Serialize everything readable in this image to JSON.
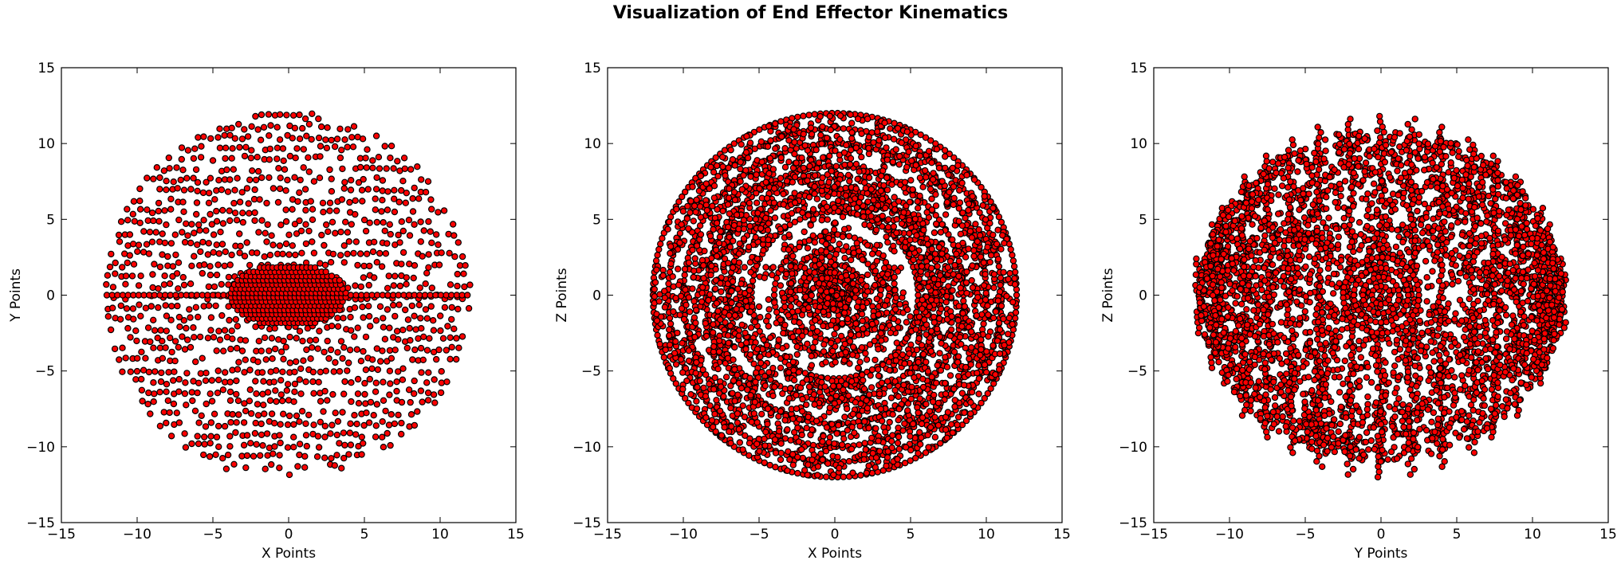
{
  "figure": {
    "title": "Visualization of End Effector Kinematics"
  },
  "colors": {
    "marker_fill": "#ff0000",
    "marker_edge": "#000000",
    "axes": "#000000",
    "background": "#ffffff"
  },
  "chart_data": [
    {
      "type": "scatter",
      "xlabel": "X Points",
      "ylabel": "Y Points",
      "xlim": [
        -15,
        15
      ],
      "ylim": [
        -15,
        15
      ],
      "xticks": [
        -15,
        -10,
        -5,
        0,
        5,
        10,
        15
      ],
      "yticks": [
        -15,
        -10,
        -5,
        0,
        5,
        10,
        15
      ],
      "grid": false,
      "marker": "circle",
      "pattern": "sphere-slices",
      "sphere_radius": 12,
      "slice_step": 0.7,
      "inner_ellipse": {
        "rx": 3.8,
        "ry": 2.1
      }
    },
    {
      "type": "scatter",
      "xlabel": "X Points",
      "ylabel": "Z Points",
      "xlim": [
        -15,
        15
      ],
      "ylim": [
        -15,
        15
      ],
      "xticks": [
        -15,
        -10,
        -5,
        0,
        5,
        10,
        15
      ],
      "yticks": [
        -15,
        -10,
        -5,
        0,
        5,
        10,
        15
      ],
      "grid": false,
      "marker": "circle",
      "pattern": "concentric-rings",
      "sphere_radius": 12,
      "rings": [
        1,
        2,
        3,
        4,
        5.5,
        7,
        8.5,
        10,
        11,
        12
      ]
    },
    {
      "type": "scatter",
      "xlabel": "Y Points",
      "ylabel": "Z Points",
      "xlim": [
        -15,
        15
      ],
      "ylim": [
        -15,
        15
      ],
      "xticks": [
        -15,
        -10,
        -5,
        0,
        5,
        10,
        15
      ],
      "yticks": [
        -15,
        -10,
        -5,
        0,
        5,
        10,
        15
      ],
      "grid": false,
      "marker": "circle",
      "pattern": "vertical-bands",
      "sphere_radius": 12,
      "bands": [
        -12,
        -11,
        -10.5,
        -9,
        -7.5,
        -6,
        -4,
        -2,
        0,
        2,
        4,
        6,
        7.5,
        9,
        10.5,
        11,
        12
      ]
    }
  ]
}
